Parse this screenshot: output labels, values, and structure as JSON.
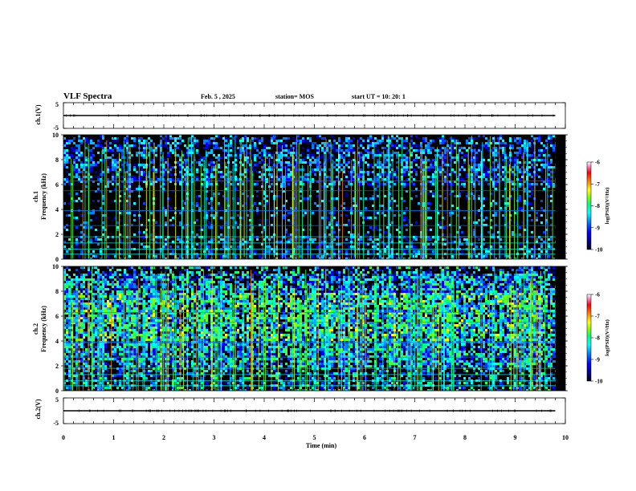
{
  "header": {
    "title": "VLF Spectra",
    "date": "Feb. 5 , 2025",
    "station": "station= MOS",
    "start": "start UT =   10: 20: 1"
  },
  "colors": {
    "palette": [
      "#000000",
      "#000080",
      "#0000ff",
      "#0080ff",
      "#00ffff",
      "#00ff80",
      "#80ff00",
      "#ffff00",
      "#ff8000",
      "#ff0000",
      "#ff80c0",
      "#ffffff"
    ]
  },
  "chart_data": [
    {
      "type": "line",
      "name": "ch1-waveform",
      "ylabel": "ch.1(V)",
      "ylim": [
        -5,
        5
      ],
      "yticks": [
        "5",
        "-5"
      ],
      "x": [
        0,
        9.8
      ],
      "values": [
        0,
        0
      ]
    },
    {
      "type": "heatmap",
      "name": "ch1-spectrogram",
      "ylabel_line1": "ch.1",
      "ylabel_line2": "Frequency (kHz)",
      "ylim": [
        0,
        10
      ],
      "yticks": [
        "0",
        "2",
        "4",
        "6",
        "8",
        "10"
      ],
      "xlim": [
        0,
        10
      ],
      "colorbar": {
        "label": "log(PSD)(V²/Hz)",
        "ticks": [
          "-6",
          "-7",
          "-8",
          "-9",
          "-10"
        ],
        "range": [
          -10,
          -6
        ]
      }
    },
    {
      "type": "heatmap",
      "name": "ch2-spectrogram",
      "ylabel_line1": "ch.2",
      "ylabel_line2": "Frequency (kHz)",
      "ylim": [
        0,
        10
      ],
      "yticks": [
        "0",
        "2",
        "4",
        "6",
        "8",
        "10"
      ],
      "xlim": [
        0,
        10
      ],
      "colorbar": {
        "label": "log(PSD)(V²/Hz)",
        "ticks": [
          "-6",
          "-7",
          "-8",
          "-9",
          "-10"
        ],
        "range": [
          -10,
          -6
        ]
      }
    },
    {
      "type": "line",
      "name": "ch2-waveform",
      "ylabel": "ch.2(V)",
      "ylim": [
        -5,
        5
      ],
      "yticks": [
        "5",
        "-5"
      ],
      "x": [
        0,
        9.8
      ],
      "values": [
        0,
        0
      ]
    }
  ],
  "xaxis": {
    "label": "Time (min)",
    "ticks": [
      "0",
      "1",
      "2",
      "3",
      "4",
      "5",
      "6",
      "7",
      "8",
      "9",
      "10"
    ],
    "xlim": [
      0,
      10
    ]
  }
}
